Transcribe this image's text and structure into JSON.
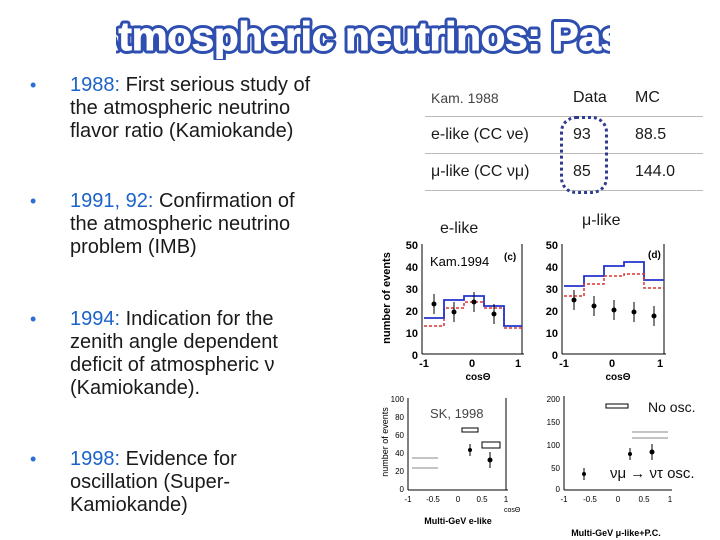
{
  "title": "Atmospheric neutrinos: Past",
  "bullets": [
    {
      "year": "1988:",
      "lines": [
        " First serious study of",
        "the atmospheric neutrino",
        "flavor ratio (Kamiokande)"
      ]
    },
    {
      "year": "1991, 92:",
      "lines": [
        " Confirmation of",
        "the atmospheric neutrino",
        "problem (IMB)"
      ]
    },
    {
      "year": "1994:",
      "lines": [
        " Indication for the",
        "zenith angle dependent",
        "deficit of atmospheric ν",
        "(Kamiokande)."
      ]
    },
    {
      "year": "1998:",
      "lines": [
        " Evidence for",
        "oscillation (Super-",
        "Kamiokande)"
      ]
    }
  ],
  "table": {
    "header": [
      "Kam. 1988",
      "Data",
      "MC"
    ],
    "rows": [
      [
        "e-like (CC νe)",
        "93",
        "88.5"
      ],
      [
        "μ-like (CC νμ)",
        "85",
        "144.0"
      ]
    ]
  },
  "plots": {
    "elike_label": "e-like",
    "mulike_label": "μ-like",
    "kam1994_label": "Kam.1994",
    "panel_c": "(c)",
    "panel_d": "(d)",
    "ylabel": "number of events",
    "xlabel": "cosΘ",
    "y_ticks": [
      "50",
      "40",
      "30",
      "20",
      "10",
      "0"
    ],
    "x_ticks": [
      "-1",
      "0",
      "1"
    ],
    "sk_label": "SK, 1998",
    "sk_left_ylabel": "number of events",
    "sk_left_yticks": [
      "100",
      "80",
      "60",
      "40",
      "20",
      "0"
    ],
    "sk_left_xticks": [
      "-1",
      "-0.5",
      "0",
      "0.5",
      "1"
    ],
    "sk_left_xtitle": "Multi-GeV e-like",
    "sk_right_yticks": [
      "200",
      "150",
      "100",
      "50",
      "0"
    ],
    "sk_right_xticks": [
      "-1",
      "-0.5",
      "0",
      "0.5",
      "1"
    ],
    "sk_right_xtitle": "Multi-GeV μ-like+P.C.",
    "cos_small": "cosΘ",
    "no_osc": "No osc.",
    "osc": "νμ → ντ osc."
  }
}
